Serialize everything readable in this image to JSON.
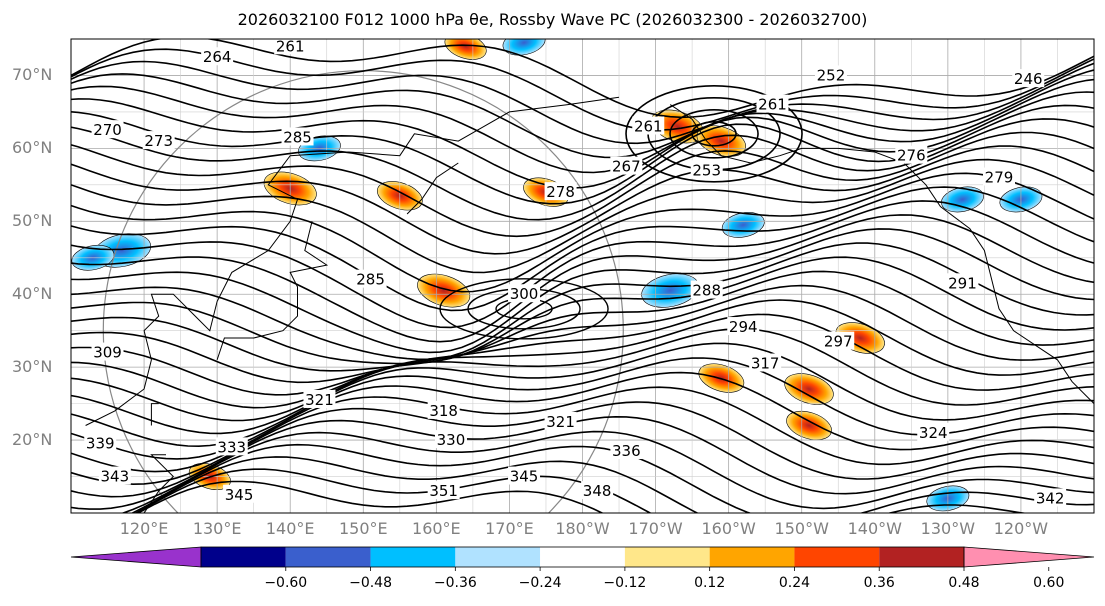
{
  "title": "2026032100 F012 1000 hPa θe, Rossby Wave PC (2026032300 - 2026032700)",
  "map": {
    "lat_labels": [
      "70°N",
      "60°N",
      "50°N",
      "40°N",
      "30°N",
      "20°N"
    ],
    "lat_values": [
      70,
      60,
      50,
      40,
      30,
      20
    ],
    "lon_labels": [
      "120°E",
      "130°E",
      "140°E",
      "150°E",
      "160°E",
      "170°E",
      "180°W",
      "170°W",
      "160°W",
      "150°W",
      "140°W",
      "130°W",
      "120°W"
    ],
    "lon_values": [
      120,
      130,
      140,
      150,
      160,
      170,
      180,
      190,
      200,
      210,
      220,
      230,
      240
    ],
    "lat_range": [
      10,
      75
    ],
    "lon_range": [
      110,
      250
    ],
    "grid": true,
    "contour_color": "#000000",
    "contour_labels": [
      {
        "text": "264",
        "lon": 130,
        "lat": 72.5
      },
      {
        "text": "261",
        "lon": 140,
        "lat": 74
      },
      {
        "text": "270",
        "lon": 115,
        "lat": 62.5
      },
      {
        "text": "273",
        "lon": 122,
        "lat": 61
      },
      {
        "text": "285",
        "lon": 141,
        "lat": 61.5
      },
      {
        "text": "261",
        "lon": 189,
        "lat": 63
      },
      {
        "text": "267",
        "lon": 186,
        "lat": 57.5
      },
      {
        "text": "253",
        "lon": 197,
        "lat": 57
      },
      {
        "text": "252",
        "lon": 214,
        "lat": 70
      },
      {
        "text": "261",
        "lon": 206,
        "lat": 66
      },
      {
        "text": "246",
        "lon": 241,
        "lat": 69.5
      },
      {
        "text": "276",
        "lon": 225,
        "lat": 59
      },
      {
        "text": "279",
        "lon": 237,
        "lat": 56
      },
      {
        "text": "278",
        "lon": 177,
        "lat": 54
      },
      {
        "text": "285",
        "lon": 151,
        "lat": 42
      },
      {
        "text": "300",
        "lon": 172,
        "lat": 40
      },
      {
        "text": "288",
        "lon": 197,
        "lat": 40.5
      },
      {
        "text": "291",
        "lon": 232,
        "lat": 41.5
      },
      {
        "text": "294",
        "lon": 202,
        "lat": 35.5
      },
      {
        "text": "297",
        "lon": 215,
        "lat": 33.5
      },
      {
        "text": "309",
        "lon": 115,
        "lat": 32
      },
      {
        "text": "321",
        "lon": 144,
        "lat": 25.5
      },
      {
        "text": "318",
        "lon": 161,
        "lat": 24
      },
      {
        "text": "317",
        "lon": 205,
        "lat": 30.5
      },
      {
        "text": "321",
        "lon": 177,
        "lat": 22.5
      },
      {
        "text": "324",
        "lon": 228,
        "lat": 21
      },
      {
        "text": "339",
        "lon": 114,
        "lat": 19.5
      },
      {
        "text": "333",
        "lon": 132,
        "lat": 19
      },
      {
        "text": "330",
        "lon": 162,
        "lat": 20
      },
      {
        "text": "336",
        "lon": 186,
        "lat": 18.5
      },
      {
        "text": "343",
        "lon": 116,
        "lat": 15
      },
      {
        "text": "345",
        "lon": 133,
        "lat": 12.5
      },
      {
        "text": "345",
        "lon": 172,
        "lat": 15
      },
      {
        "text": "351",
        "lon": 161,
        "lat": 13
      },
      {
        "text": "348",
        "lon": 182,
        "lat": 13
      },
      {
        "text": "342",
        "lon": 244,
        "lat": 12
      }
    ]
  },
  "colorbar": {
    "colors": [
      "#9932cc",
      "#00008b",
      "#3a5fcd",
      "#00bfff",
      "#b0e2ff",
      "#ffffff",
      "#ffe78a",
      "#ffa500",
      "#ff4500",
      "#b22222",
      "#ff8fb0"
    ],
    "tick_labels": [
      "−0.60",
      "−0.48",
      "−0.36",
      "−0.24",
      "−0.12",
      "0.12",
      "0.24",
      "0.36",
      "0.48",
      "0.60"
    ],
    "tick_values": [
      -0.6,
      -0.48,
      -0.36,
      -0.24,
      -0.12,
      0.12,
      0.24,
      0.36,
      0.48,
      0.6
    ],
    "extend": "both"
  },
  "anomalies": [
    {
      "lon": 117,
      "lat": 46,
      "v": -0.5
    },
    {
      "lon": 113,
      "lat": 45,
      "v": -0.3
    },
    {
      "lon": 140,
      "lat": 54.5,
      "v": 0.45
    },
    {
      "lon": 144,
      "lat": 60,
      "v": -0.3
    },
    {
      "lon": 155,
      "lat": 53.5,
      "v": 0.35
    },
    {
      "lon": 161,
      "lat": 40.5,
      "v": 0.45
    },
    {
      "lon": 175,
      "lat": 54,
      "v": 0.35
    },
    {
      "lon": 192,
      "lat": 40.5,
      "v": -0.5
    },
    {
      "lon": 202,
      "lat": 49.5,
      "v": -0.3
    },
    {
      "lon": 193,
      "lat": 63,
      "v": 0.45
    },
    {
      "lon": 199,
      "lat": 61,
      "v": 0.4
    },
    {
      "lon": 218,
      "lat": 34,
      "v": 0.4
    },
    {
      "lon": 211,
      "lat": 27,
      "v": 0.4
    },
    {
      "lon": 199,
      "lat": 28.5,
      "v": 0.35
    },
    {
      "lon": 211,
      "lat": 22,
      "v": 0.35
    },
    {
      "lon": 164,
      "lat": 74,
      "v": 0.3
    },
    {
      "lon": 172,
      "lat": 74.5,
      "v": -0.3
    },
    {
      "lon": 129,
      "lat": 15,
      "v": 0.3
    },
    {
      "lon": 232,
      "lat": 53,
      "v": -0.3
    },
    {
      "lon": 240,
      "lat": 53,
      "v": -0.3
    },
    {
      "lon": 230,
      "lat": 12,
      "v": -0.3
    }
  ]
}
